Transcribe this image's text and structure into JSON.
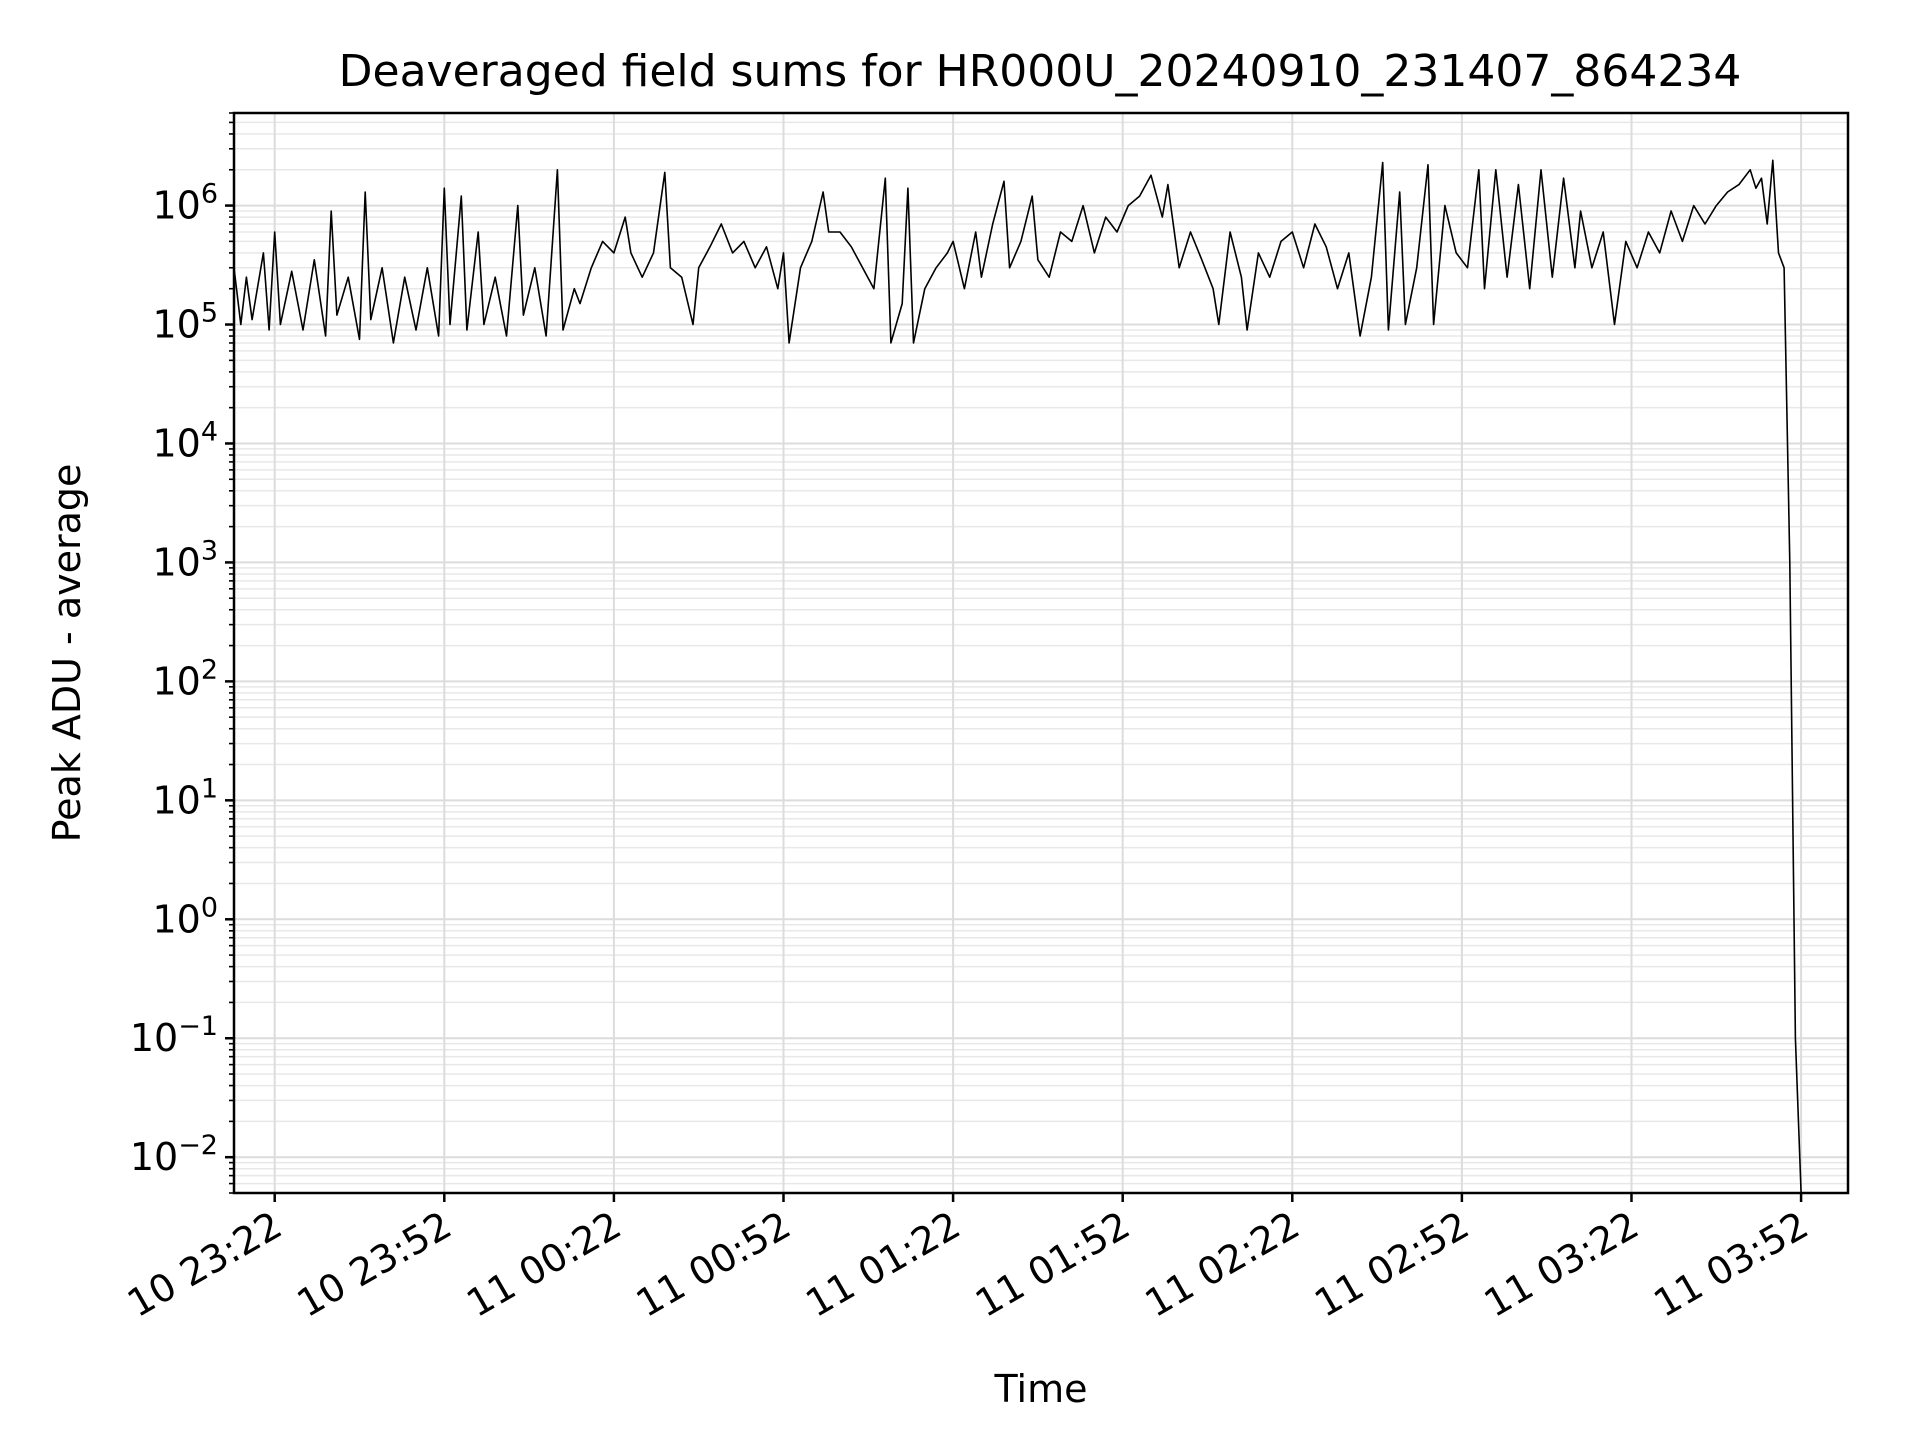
{
  "chart_data": {
    "type": "line",
    "title": "Deaveraged field sums for HR000U_20240910_231407_864234",
    "xlabel": "Time",
    "ylabel": "Peak ADU - average",
    "yscale": "log",
    "ylim": [
      0.005,
      6000000
    ],
    "xlim": [
      "10 23:14:48",
      "11 04:00:18"
    ],
    "grid": true,
    "x_ticks": [
      "10 23:22",
      "10 23:52",
      "11 00:22",
      "11 00:52",
      "11 01:22",
      "11 01:52",
      "11 02:22",
      "11 02:52",
      "11 03:22",
      "11 03:52"
    ],
    "y_ticks": [
      {
        "value": 0.01,
        "base": "10",
        "exp": "−2"
      },
      {
        "value": 0.1,
        "base": "10",
        "exp": "−1"
      },
      {
        "value": 1,
        "base": "10",
        "exp": "0"
      },
      {
        "value": 10,
        "base": "10",
        "exp": "1"
      },
      {
        "value": 100,
        "base": "10",
        "exp": "2"
      },
      {
        "value": 1000,
        "base": "10",
        "exp": "3"
      },
      {
        "value": 10000,
        "base": "10",
        "exp": "4"
      },
      {
        "value": 100000,
        "base": "10",
        "exp": "5"
      },
      {
        "value": 1000000,
        "base": "10",
        "exp": "6"
      }
    ],
    "series": [
      {
        "color": "#000000",
        "points": [
          [
            "10 23:14:48",
            300000
          ],
          [
            "10 23:16",
            100000
          ],
          [
            "10 23:17",
            250000
          ],
          [
            "10 23:18",
            110000
          ],
          [
            "10 23:20",
            400000
          ],
          [
            "10 23:21",
            90000
          ],
          [
            "10 23:22",
            600000
          ],
          [
            "10 23:23",
            100000
          ],
          [
            "10 23:25",
            280000
          ],
          [
            "10 23:27",
            90000
          ],
          [
            "10 23:29",
            350000
          ],
          [
            "10 23:31",
            80000
          ],
          [
            "10 23:32",
            900000
          ],
          [
            "10 23:33",
            120000
          ],
          [
            "10 23:35",
            250000
          ],
          [
            "10 23:37",
            75000
          ],
          [
            "10 23:38",
            1300000
          ],
          [
            "10 23:39",
            110000
          ],
          [
            "10 23:41",
            300000
          ],
          [
            "10 23:43",
            70000
          ],
          [
            "10 23:45",
            250000
          ],
          [
            "10 23:47",
            90000
          ],
          [
            "10 23:49",
            300000
          ],
          [
            "10 23:51",
            80000
          ],
          [
            "10 23:52",
            1400000
          ],
          [
            "10 23:53",
            100000
          ],
          [
            "10 23:55",
            1200000
          ],
          [
            "10 23:56",
            90000
          ],
          [
            "10 23:58",
            600000
          ],
          [
            "10 23:59",
            100000
          ],
          [
            "11 00:01",
            250000
          ],
          [
            "11 00:03",
            80000
          ],
          [
            "11 00:05",
            1000000
          ],
          [
            "11 00:06",
            120000
          ],
          [
            "11 00:08",
            300000
          ],
          [
            "11 00:10",
            80000
          ],
          [
            "11 00:12",
            2000000
          ],
          [
            "11 00:13",
            90000
          ],
          [
            "11 00:15",
            200000
          ],
          [
            "11 00:16",
            150000
          ],
          [
            "11 00:18",
            300000
          ],
          [
            "11 00:20",
            500000
          ],
          [
            "11 00:22",
            400000
          ],
          [
            "11 00:24",
            800000
          ],
          [
            "11 00:25",
            400000
          ],
          [
            "11 00:27",
            250000
          ],
          [
            "11 00:29",
            400000
          ],
          [
            "11 00:31",
            1900000
          ],
          [
            "11 00:32",
            300000
          ],
          [
            "11 00:34",
            250000
          ],
          [
            "11 00:36",
            100000
          ],
          [
            "11 00:37",
            300000
          ],
          [
            "11 00:39",
            450000
          ],
          [
            "11 00:41",
            700000
          ],
          [
            "11 00:43",
            400000
          ],
          [
            "11 00:45",
            500000
          ],
          [
            "11 00:47",
            300000
          ],
          [
            "11 00:49",
            450000
          ],
          [
            "11 00:51",
            200000
          ],
          [
            "11 00:52",
            400000
          ],
          [
            "11 00:53",
            70000
          ],
          [
            "11 00:55",
            300000
          ],
          [
            "11 00:57",
            500000
          ],
          [
            "11 00:59",
            1300000
          ],
          [
            "11 01:00",
            600000
          ],
          [
            "11 01:02",
            600000
          ],
          [
            "11 01:04",
            450000
          ],
          [
            "11 01:06",
            300000
          ],
          [
            "11 01:08",
            200000
          ],
          [
            "11 01:10",
            1700000
          ],
          [
            "11 01:11",
            70000
          ],
          [
            "11 01:13",
            150000
          ],
          [
            "11 01:14",
            1400000
          ],
          [
            "11 01:15",
            70000
          ],
          [
            "11 01:17",
            200000
          ],
          [
            "11 01:19",
            300000
          ],
          [
            "11 01:21",
            400000
          ],
          [
            "11 01:22",
            500000
          ],
          [
            "11 01:24",
            200000
          ],
          [
            "11 01:26",
            600000
          ],
          [
            "11 01:27",
            250000
          ],
          [
            "11 01:29",
            700000
          ],
          [
            "11 01:31",
            1600000
          ],
          [
            "11 01:32",
            300000
          ],
          [
            "11 01:34",
            500000
          ],
          [
            "11 01:36",
            1200000
          ],
          [
            "11 01:37",
            350000
          ],
          [
            "11 01:39",
            250000
          ],
          [
            "11 01:41",
            600000
          ],
          [
            "11 01:43",
            500000
          ],
          [
            "11 01:45",
            1000000
          ],
          [
            "11 01:47",
            400000
          ],
          [
            "11 01:49",
            800000
          ],
          [
            "11 01:51",
            600000
          ],
          [
            "11 01:53",
            1000000
          ],
          [
            "11 01:55",
            1200000
          ],
          [
            "11 01:57",
            1800000
          ],
          [
            "11 01:59",
            800000
          ],
          [
            "11 02:00",
            1500000
          ],
          [
            "11 02:02",
            300000
          ],
          [
            "11 02:04",
            600000
          ],
          [
            "11 02:06",
            350000
          ],
          [
            "11 02:08",
            200000
          ],
          [
            "11 02:09",
            100000
          ],
          [
            "11 02:11",
            600000
          ],
          [
            "11 02:13",
            250000
          ],
          [
            "11 02:14",
            90000
          ],
          [
            "11 02:16",
            400000
          ],
          [
            "11 02:18",
            250000
          ],
          [
            "11 02:20",
            500000
          ],
          [
            "11 02:22",
            600000
          ],
          [
            "11 02:24",
            300000
          ],
          [
            "11 02:26",
            700000
          ],
          [
            "11 02:28",
            450000
          ],
          [
            "11 02:30",
            200000
          ],
          [
            "11 02:32",
            400000
          ],
          [
            "11 02:34",
            80000
          ],
          [
            "11 02:36",
            250000
          ],
          [
            "11 02:38",
            2300000
          ],
          [
            "11 02:39",
            90000
          ],
          [
            "11 02:41",
            1300000
          ],
          [
            "11 02:42",
            100000
          ],
          [
            "11 02:44",
            300000
          ],
          [
            "11 02:46",
            2200000
          ],
          [
            "11 02:47",
            100000
          ],
          [
            "11 02:49",
            1000000
          ],
          [
            "11 02:51",
            400000
          ],
          [
            "11 02:53",
            300000
          ],
          [
            "11 02:55",
            2000000
          ],
          [
            "11 02:56",
            200000
          ],
          [
            "11 02:58",
            2000000
          ],
          [
            "11 03:00",
            250000
          ],
          [
            "11 03:02",
            1500000
          ],
          [
            "11 03:04",
            200000
          ],
          [
            "11 03:06",
            2000000
          ],
          [
            "11 03:08",
            250000
          ],
          [
            "11 03:10",
            1700000
          ],
          [
            "11 03:12",
            300000
          ],
          [
            "11 03:13",
            900000
          ],
          [
            "11 03:15",
            300000
          ],
          [
            "11 03:17",
            600000
          ],
          [
            "11 03:19",
            100000
          ],
          [
            "11 03:21",
            500000
          ],
          [
            "11 03:23",
            300000
          ],
          [
            "11 03:25",
            600000
          ],
          [
            "11 03:27",
            400000
          ],
          [
            "11 03:29",
            900000
          ],
          [
            "11 03:31",
            500000
          ],
          [
            "11 03:33",
            1000000
          ],
          [
            "11 03:35",
            700000
          ],
          [
            "11 03:37",
            1000000
          ],
          [
            "11 03:39",
            1300000
          ],
          [
            "11 03:41",
            1500000
          ],
          [
            "11 03:43",
            2000000
          ],
          [
            "11 03:44",
            1400000
          ],
          [
            "11 03:45",
            1700000
          ],
          [
            "11 03:46",
            700000
          ],
          [
            "11 03:47",
            2400000
          ],
          [
            "11 03:48",
            400000
          ],
          [
            "11 03:49",
            300000
          ],
          [
            "11 03:50",
            1000
          ],
          [
            "11 03:51",
            0.1
          ],
          [
            "11 03:52",
            0.005
          ]
        ]
      }
    ]
  }
}
